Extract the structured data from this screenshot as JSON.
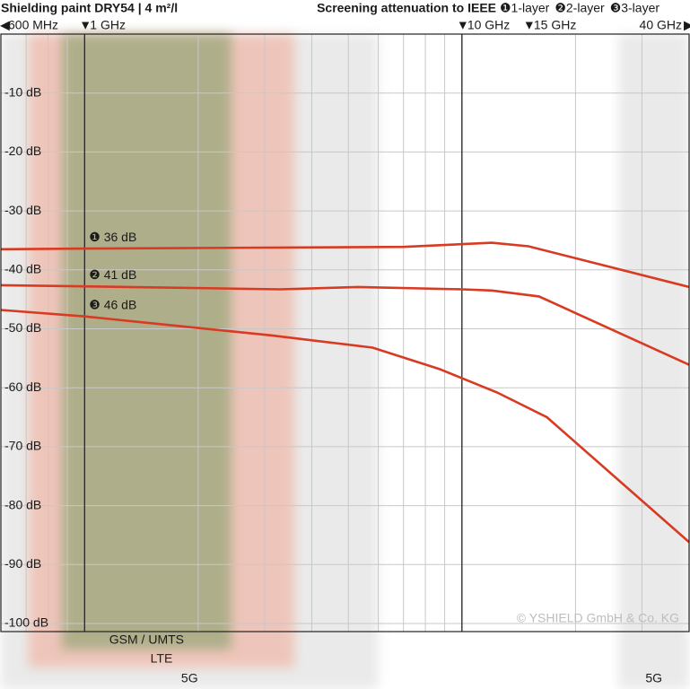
{
  "chart_data": {
    "type": "line",
    "title": "Shielding paint DRY54 | 4 m²/l",
    "subtitle": "Screening attenuation to IEEE",
    "xscale": "log",
    "xlim": [
      0.6,
      40
    ],
    "ylim": [
      0,
      -100
    ],
    "xgrid": [
      0.6,
      0.7,
      0.8,
      0.9,
      1,
      2,
      3,
      4,
      5,
      6,
      7,
      8,
      9,
      10,
      20,
      30,
      40
    ],
    "yticks": [
      {
        "value": -10,
        "label": "-10 dB"
      },
      {
        "value": -20,
        "label": "-20 dB"
      },
      {
        "value": -30,
        "label": "-30 dB"
      },
      {
        "value": -40,
        "label": "-40 dB"
      },
      {
        "value": -50,
        "label": "-50 dB"
      },
      {
        "value": -60,
        "label": "-60 dB"
      },
      {
        "value": -70,
        "label": "-70 dB"
      },
      {
        "value": -80,
        "label": "-80 dB"
      },
      {
        "value": -90,
        "label": "-90 dB"
      },
      {
        "value": -100,
        "label": "-100 dB"
      }
    ],
    "grid": true,
    "x_markers": [
      {
        "value": 0.6,
        "label": "600 MHz",
        "line": false
      },
      {
        "value": 1,
        "label": "1 GHz",
        "line": true
      },
      {
        "value": 10,
        "label": "10 GHz",
        "line": true
      },
      {
        "value": 15,
        "label": "15 GHz",
        "line": false
      },
      {
        "value": 40,
        "label": "40 GHz",
        "line": false
      }
    ],
    "bands": [
      {
        "label": "5G",
        "range": [
          0.6,
          6
        ],
        "color": "#d9d9d9"
      },
      {
        "label": "5G",
        "range": [
          26,
          40
        ],
        "color": "#d9d9d9"
      },
      {
        "label": "LTE",
        "range": [
          0.71,
          3.6
        ],
        "color": "#f2a893"
      },
      {
        "label": "GSM / UMTS",
        "range": [
          0.87,
          2.45
        ],
        "color": "#9aa77a"
      }
    ],
    "series": [
      {
        "name": "❶1-layer",
        "color": "#d83a22",
        "annotation": "❶ 36 dB",
        "x": [
          0.6,
          1,
          7,
          12,
          15,
          40
        ],
        "values": [
          -36.5,
          -36.4,
          -36.1,
          -35.4,
          -36,
          -42.9
        ]
      },
      {
        "name": "❷2-layer",
        "color": "#d83a22",
        "annotation": "❷ 41 dB",
        "x": [
          0.6,
          1,
          3.3,
          5.3,
          10,
          12,
          16,
          40
        ],
        "values": [
          -42.6,
          -42.8,
          -43.3,
          -42.9,
          -43.3,
          -43.5,
          -44.5,
          -56.1
        ]
      },
      {
        "name": "❸3-layer",
        "color": "#d83a22",
        "annotation": "❸ 46 dB",
        "x": [
          0.6,
          1,
          3.1,
          5.8,
          8.7,
          12.4,
          16.8,
          40
        ],
        "values": [
          -46.8,
          -47.9,
          -51.1,
          -53.2,
          -56.8,
          -60.8,
          -65,
          -86.2
        ]
      }
    ],
    "copyright": "© YSHIELD GmbH & Co. KG"
  }
}
